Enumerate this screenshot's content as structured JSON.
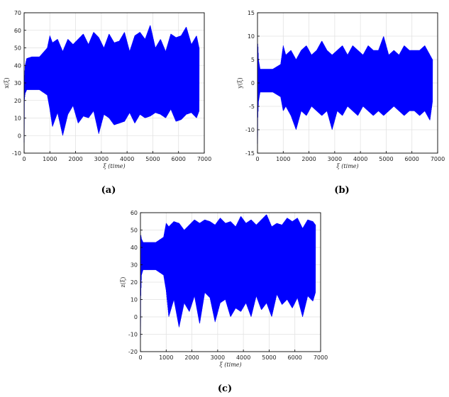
{
  "chart_data": [
    {
      "type": "line",
      "panel_label": "(a)",
      "ylabel": "x(ξ)",
      "xlabel_symbol": "ξ",
      "xlabel_unit": "(time)",
      "xlim": [
        0,
        7000
      ],
      "ylim": [
        -10,
        70
      ],
      "xticks": [
        0,
        1000,
        2000,
        3000,
        4000,
        5000,
        6000,
        7000
      ],
      "yticks": [
        -10,
        0,
        10,
        20,
        30,
        40,
        50,
        60,
        70
      ],
      "grid": true,
      "series": [
        {
          "color": "#0000ff",
          "x_range": [
            0,
            6800
          ],
          "envelope_x": [
            0,
            10,
            40,
            100,
            300,
            600,
            900,
            1000,
            1100,
            1300,
            1500,
            1700,
            1900,
            2100,
            2300,
            2500,
            2700,
            2900,
            3100,
            3300,
            3500,
            3700,
            3900,
            4100,
            4300,
            4500,
            4700,
            4900,
            5100,
            5300,
            5500,
            5700,
            5900,
            6100,
            6300,
            6500,
            6700,
            6800
          ],
          "envelope_upper": [
            -4,
            32,
            40,
            44,
            45,
            45,
            50,
            57,
            53,
            55,
            48,
            55,
            52,
            55,
            58,
            52,
            59,
            56,
            50,
            58,
            53,
            54,
            59,
            48,
            57,
            59,
            55,
            63,
            50,
            55,
            48,
            58,
            56,
            57,
            62,
            52,
            57,
            50
          ],
          "envelope_lower": [
            -4,
            20,
            24,
            26,
            26,
            26,
            23,
            15,
            5,
            13,
            0,
            12,
            17,
            7,
            11,
            10,
            14,
            1,
            12,
            10,
            6,
            7,
            8,
            13,
            7,
            12,
            10,
            11,
            13,
            12,
            10,
            15,
            8,
            9,
            12,
            13,
            10,
            14
          ]
        }
      ]
    },
    {
      "type": "line",
      "panel_label": "(b)",
      "ylabel": "y(ξ)",
      "xlabel_symbol": "ξ",
      "xlabel_unit": "(time)",
      "xlim": [
        0,
        7000
      ],
      "ylim": [
        -15,
        15
      ],
      "xticks": [
        0,
        1000,
        2000,
        3000,
        4000,
        5000,
        6000,
        7000
      ],
      "yticks": [
        -15,
        -10,
        -5,
        0,
        5,
        10,
        15
      ],
      "grid": true,
      "series": [
        {
          "color": "#0000ff",
          "x_range": [
            0,
            6800
          ],
          "envelope_x": [
            0,
            10,
            40,
            100,
            300,
            600,
            900,
            1000,
            1100,
            1300,
            1500,
            1700,
            1900,
            2100,
            2300,
            2500,
            2700,
            2900,
            3100,
            3300,
            3500,
            3700,
            3900,
            4100,
            4300,
            4500,
            4700,
            4900,
            5100,
            5300,
            5500,
            5700,
            5900,
            6100,
            6300,
            6500,
            6700,
            6800
          ],
          "envelope_upper": [
            -13,
            9,
            5,
            3,
            3,
            3,
            4,
            8,
            6,
            7,
            5,
            7,
            8,
            6,
            7,
            9,
            7,
            6,
            7,
            8,
            6,
            8,
            7,
            6,
            8,
            7,
            7,
            10,
            6,
            7,
            6,
            8,
            7,
            7,
            7,
            8,
            6,
            5
          ],
          "envelope_lower": [
            -13,
            -8,
            -4,
            -2,
            -2,
            -2,
            -3,
            -6,
            -5,
            -7,
            -10,
            -6,
            -7,
            -5,
            -6,
            -7,
            -6,
            -10,
            -6,
            -7,
            -5,
            -6,
            -7,
            -5,
            -6,
            -7,
            -6,
            -7,
            -6,
            -5,
            -6,
            -7,
            -6,
            -6,
            -7,
            -6,
            -8,
            -4
          ]
        }
      ]
    },
    {
      "type": "line",
      "panel_label": "(c)",
      "ylabel": "z(ξ)",
      "xlabel_symbol": "ξ",
      "xlabel_unit": "(time)",
      "xlim": [
        0,
        7000
      ],
      "ylim": [
        -20,
        60
      ],
      "xticks": [
        0,
        1000,
        2000,
        3000,
        4000,
        5000,
        6000,
        7000
      ],
      "yticks": [
        -20,
        -10,
        0,
        10,
        20,
        30,
        40,
        50,
        60
      ],
      "grid": true,
      "series": [
        {
          "color": "#0000ff",
          "x_range": [
            0,
            6800
          ],
          "envelope_x": [
            0,
            10,
            40,
            100,
            300,
            600,
            900,
            1000,
            1100,
            1300,
            1500,
            1700,
            1900,
            2100,
            2300,
            2500,
            2700,
            2900,
            3100,
            3300,
            3500,
            3700,
            3900,
            4100,
            4300,
            4500,
            4700,
            4900,
            5100,
            5300,
            5500,
            5700,
            5900,
            6100,
            6300,
            6500,
            6700,
            6800
          ],
          "envelope_upper": [
            -12,
            48,
            45,
            43,
            43,
            43,
            46,
            54,
            52,
            55,
            54,
            50,
            53,
            56,
            54,
            56,
            55,
            53,
            57,
            54,
            55,
            52,
            58,
            54,
            56,
            53,
            56,
            59,
            52,
            54,
            53,
            57,
            55,
            57,
            51,
            56,
            55,
            53
          ],
          "envelope_lower": [
            -12,
            10,
            24,
            27,
            27,
            27,
            24,
            15,
            0,
            10,
            -6,
            8,
            3,
            12,
            -4,
            14,
            11,
            -3,
            8,
            10,
            0,
            5,
            3,
            8,
            0,
            12,
            4,
            8,
            0,
            13,
            7,
            10,
            5,
            11,
            0,
            12,
            9,
            14
          ]
        }
      ]
    }
  ]
}
